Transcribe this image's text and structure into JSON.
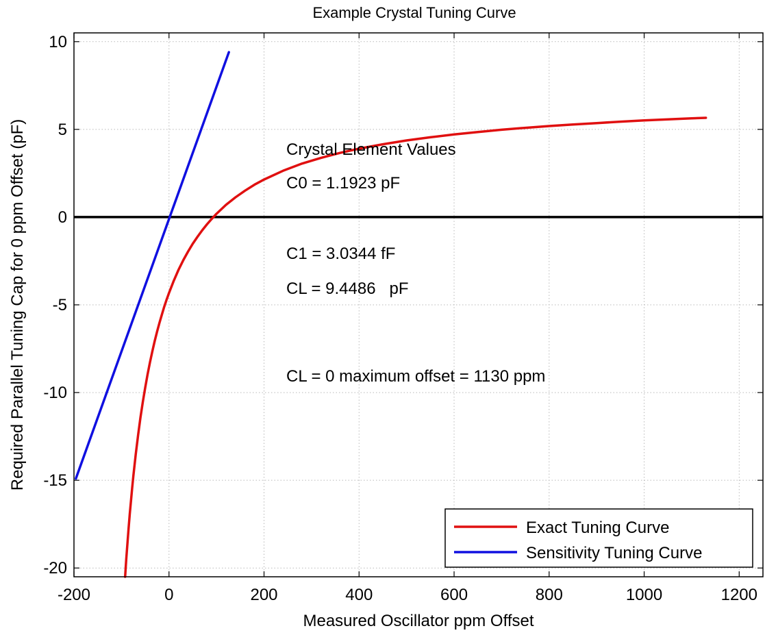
{
  "chart_data": {
    "type": "line",
    "title": "Example Crystal Tuning Curve",
    "xlabel": "Measured Oscillator ppm Offset",
    "ylabel": "Required Parallel Tuning Cap for 0 ppm Offset (pF)",
    "xlim": [
      -200,
      1250
    ],
    "ylim": [
      -20.5,
      10.5
    ],
    "xticks": [
      -200,
      0,
      200,
      400,
      600,
      800,
      1000,
      1200
    ],
    "yticks": [
      -20,
      -15,
      -10,
      -5,
      0,
      5,
      10
    ],
    "grid": true,
    "legend_position": "bottom-right",
    "reference_line_y": 0,
    "series": [
      {
        "name": "Exact Tuning Curve",
        "color": "#e01010",
        "x": [
          -92.4,
          -91.1,
          -90,
          -87.5,
          -85,
          -82.5,
          -80,
          -77.5,
          -75,
          -70,
          -65,
          -60,
          -55,
          -50,
          -45,
          -40,
          -35,
          -30,
          -25,
          -20,
          -15,
          -10,
          -5,
          0,
          10,
          20,
          30,
          40,
          50,
          60,
          70,
          80,
          90,
          100,
          120,
          140,
          160,
          180,
          200,
          240,
          280,
          320,
          360,
          400,
          450,
          500,
          550,
          600,
          650,
          700,
          750,
          800,
          850,
          900,
          950,
          1000,
          1050,
          1100,
          1130
        ],
        "y": [
          -20.5,
          -19.95,
          -19.52,
          -18.59,
          -17.72,
          -16.91,
          -16.15,
          -15.43,
          -14.76,
          -13.52,
          -12.41,
          -11.42,
          -10.52,
          -9.7,
          -8.96,
          -8.27,
          -7.64,
          -7.06,
          -6.52,
          -6.02,
          -5.55,
          -5.11,
          -4.7,
          -4.32,
          -3.63,
          -3.01,
          -2.46,
          -1.97,
          -1.52,
          -1.12,
          -0.75,
          -0.41,
          -0.1,
          0.19,
          0.7,
          1.13,
          1.51,
          1.85,
          2.14,
          2.64,
          3.05,
          3.38,
          3.66,
          3.9,
          4.15,
          4.37,
          4.55,
          4.71,
          4.85,
          4.98,
          5.09,
          5.19,
          5.28,
          5.36,
          5.44,
          5.51,
          5.57,
          5.63,
          5.66
        ]
      },
      {
        "name": "Sensitivity Tuning Curve",
        "color": "#1010e0",
        "x": [
          -196,
          126
        ],
        "y": [
          -14.9,
          9.4
        ]
      }
    ],
    "annotations": [
      "Crystal Element Values",
      "C0 = 1.1923 pF",
      "C1 = 3.0344 fF",
      "CL = 9.4486   pF",
      "CL = 0 maximum offset = 1130 ppm"
    ]
  }
}
